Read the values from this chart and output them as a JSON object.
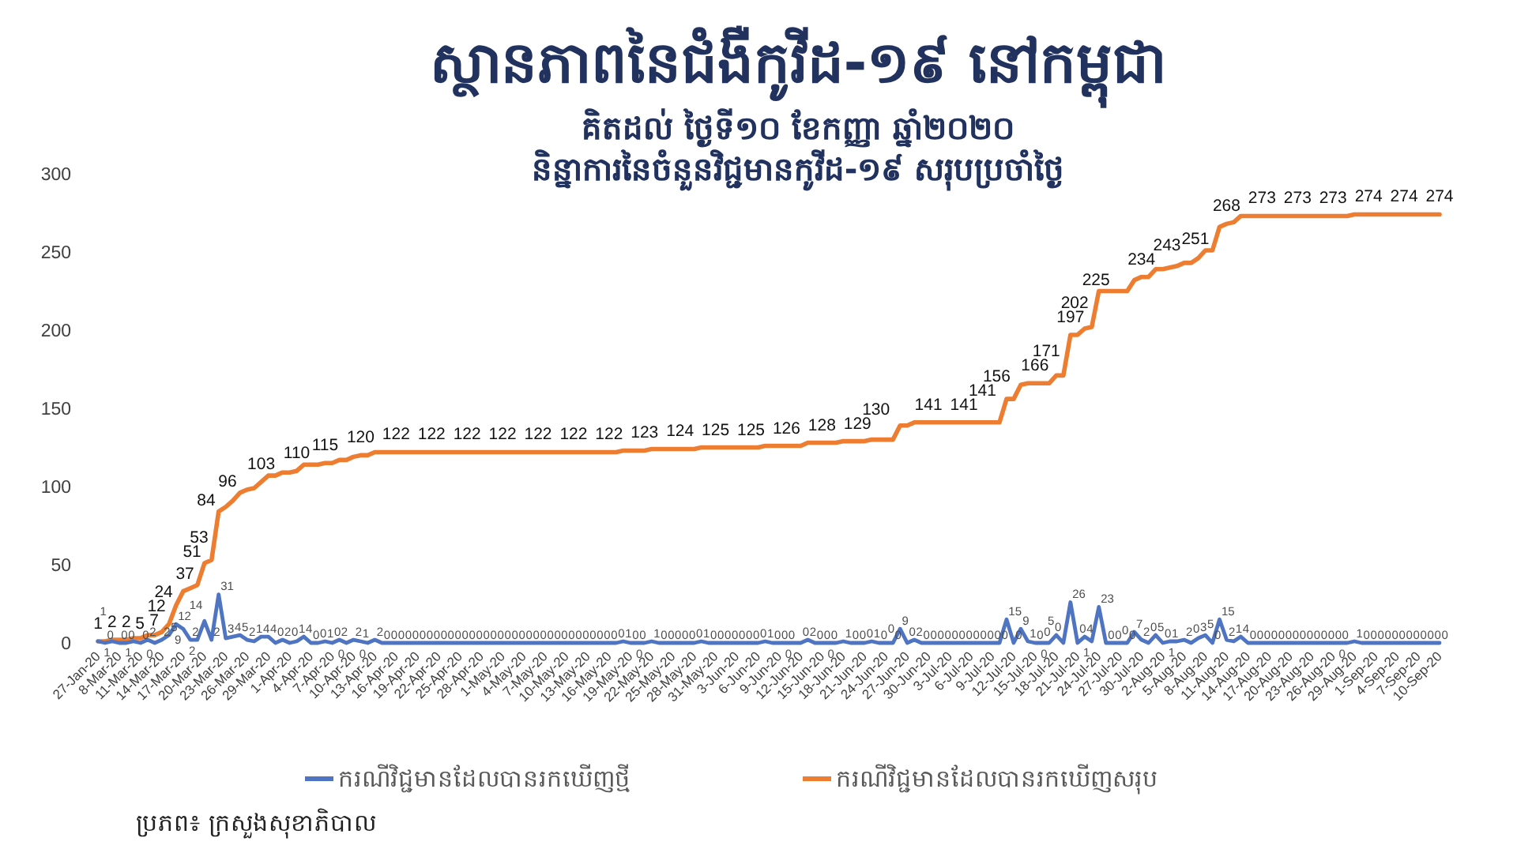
{
  "chart_data": {
    "type": "line",
    "title": "ស្ថានភាពនៃជំងឺកូវីដ-១៩ នៅកម្ពុជា",
    "subtitle": "គិតដល់ ថ្ងៃទី១០ ខែកញ្ញា ឆ្នាំ២០២០\nនិន្នាការនៃចំនួនវិជ្ជមានកូវីដ-១៩ សរុបប្រចាំថ្ងៃ",
    "categories": [
      "27-Jan-20",
      null,
      null,
      "8-Mar-20",
      null,
      null,
      "11-Mar-20",
      null,
      null,
      "14-Mar-20",
      null,
      null,
      "17-Mar-20",
      null,
      null,
      "20-Mar-20",
      null,
      null,
      "23-Mar-20",
      null,
      null,
      "26-Mar-20",
      null,
      null,
      "29-Mar-20",
      null,
      null,
      "1-Apr-20",
      null,
      null,
      "4-Apr-20",
      null,
      null,
      "7-Apr-20",
      null,
      null,
      "10-Apr-20",
      null,
      null,
      "13-Apr-20",
      null,
      null,
      "16-Apr-20",
      null,
      null,
      "19-Apr-20",
      null,
      null,
      "22-Apr-20",
      null,
      null,
      "25-Apr-20",
      null,
      null,
      "28-Apr-20",
      null,
      null,
      "1-May-20",
      null,
      null,
      "4-May-20",
      null,
      null,
      "7-May-20",
      null,
      null,
      "10-May-20",
      null,
      null,
      "13-May-20",
      null,
      null,
      "16-May-20",
      null,
      null,
      "19-May-20",
      null,
      null,
      "22-May-20",
      null,
      null,
      "25-May-20",
      null,
      null,
      "28-May-20",
      null,
      null,
      "31-May-20",
      null,
      null,
      "3-Jun-20",
      null,
      null,
      "6-Jun-20",
      null,
      null,
      "9-Jun-20",
      null,
      null,
      "12-Jun-20",
      null,
      null,
      "15-Jun-20",
      null,
      null,
      "18-Jun-20",
      null,
      null,
      "21-Jun-20",
      null,
      null,
      "24-Jun-20",
      null,
      null,
      "27-Jun-20",
      null,
      null,
      "30-Jun-20",
      null,
      null,
      "3-Jul-20",
      null,
      null,
      "6-Jul-20",
      null,
      null,
      "9-Jul-20",
      null,
      null,
      "12-Jul-20",
      null,
      null,
      "15-Jul-20",
      null,
      null,
      "18-Jul-20",
      null,
      null,
      "21-Jul-20",
      null,
      null,
      "24-Jul-20",
      null,
      null,
      "27-Jul-20",
      null,
      null,
      "30-Jul-20",
      null,
      null,
      "2-Aug-20",
      null,
      null,
      "5-Aug-20",
      null,
      null,
      "8-Aug-20",
      null,
      null,
      "11-Aug-20",
      null,
      null,
      "14-Aug-20",
      null,
      null,
      "17-Aug-20",
      null,
      null,
      "20-Aug-20",
      null,
      null,
      "23-Aug-20",
      null,
      null,
      "26-Aug-20",
      null,
      null,
      "29-Aug-20",
      null,
      null,
      "1-Sep-20",
      null,
      null,
      "4-Sep-20",
      null,
      null,
      "7-Sep-20",
      null,
      null,
      "10-Sep-20"
    ],
    "series": [
      {
        "name": "ករណីវិជ្ជមានដែលបានរកឃើញថ្មី",
        "color": "#4f75c2",
        "values": [
          1,
          0,
          1,
          0,
          0,
          1,
          0,
          2,
          0,
          2,
          5,
          12,
          9,
          2,
          2,
          14,
          2,
          31,
          3,
          4,
          5,
          2,
          1,
          4,
          4,
          0,
          2,
          0,
          1,
          4,
          0,
          0,
          1,
          0,
          2,
          0,
          2,
          1,
          0,
          2,
          0,
          0,
          0,
          0,
          0,
          0,
          0,
          0,
          0,
          0,
          0,
          0,
          0,
          0,
          0,
          0,
          0,
          0,
          0,
          0,
          0,
          0,
          0,
          0,
          0,
          0,
          0,
          0,
          0,
          0,
          0,
          0,
          0,
          0,
          1,
          0,
          0,
          0,
          1,
          0,
          0,
          0,
          0,
          0,
          0,
          1,
          0,
          0,
          0,
          0,
          0,
          0,
          0,
          0,
          1,
          0,
          0,
          0,
          0,
          0,
          2,
          0,
          0,
          0,
          0,
          1,
          0,
          0,
          0,
          1,
          0,
          0,
          0,
          9,
          0,
          2,
          0,
          0,
          0,
          0,
          0,
          0,
          0,
          0,
          0,
          0,
          0,
          0,
          15,
          0,
          9,
          1,
          0,
          0,
          0,
          5,
          0,
          26,
          0,
          4,
          1,
          23,
          0,
          0,
          0,
          0,
          7,
          2,
          0,
          5,
          0,
          1,
          1,
          2,
          0,
          3,
          5,
          0,
          15,
          2,
          1,
          4,
          0,
          0,
          0,
          0,
          0,
          0,
          0,
          0,
          0,
          0,
          0,
          0,
          0,
          0,
          0,
          1,
          0,
          0,
          0,
          0,
          0,
          0,
          0,
          0,
          0,
          0,
          0,
          0
        ],
        "value_labels": [
          "1",
          "0",
          "1",
          "0",
          "0",
          "1",
          "0",
          "2",
          "0",
          "2",
          "5",
          "12",
          "9",
          "2",
          "2",
          "14",
          "2",
          "31",
          "3",
          "4",
          "5",
          "2",
          "1",
          "4",
          "4",
          "0",
          "2",
          "0",
          "1",
          "4",
          "0",
          "0",
          "1",
          "0",
          "2",
          "0",
          "2",
          "1",
          "0",
          "2",
          "0",
          "0",
          "0",
          "0",
          "0",
          "0",
          "0",
          "0",
          "0",
          "0",
          "0",
          "0",
          "0",
          "0",
          "0",
          "0",
          "0",
          "0",
          "0",
          "0",
          "0",
          "0",
          "0",
          "0",
          "0",
          "0",
          "0",
          "0",
          "0",
          "0",
          "0",
          "0",
          "0",
          "0",
          "1",
          "0",
          "0",
          "0",
          "1",
          "0",
          "0",
          "0",
          "0",
          "0",
          "0",
          "1",
          "0",
          "0",
          "0",
          "0",
          "0",
          "0",
          "0",
          "0",
          "1",
          "0",
          "0",
          "0",
          "0",
          "0",
          "2",
          "0",
          "0",
          "0",
          "0",
          "1",
          "0",
          "0",
          "0",
          "1",
          "0",
          "0",
          "0",
          "9",
          "0",
          "2",
          "0",
          "0",
          "0",
          "0",
          "0",
          "0",
          "0",
          "0",
          "0",
          "0",
          "0",
          "0",
          "15",
          "0",
          "9",
          "1",
          "0",
          "0",
          "0",
          "5",
          "0",
          "26",
          "0",
          "4",
          "1",
          "23",
          "0",
          "0",
          "0",
          "0",
          "7",
          "2",
          "0",
          "5",
          "0",
          "1",
          "1",
          "2",
          "0",
          "3",
          "5",
          "0",
          "15",
          "2",
          "1",
          "4",
          "0",
          "0",
          "0",
          "0",
          "0",
          "0",
          "0",
          "0",
          "0",
          "0",
          "0",
          "0",
          "0",
          "0",
          "0",
          "1",
          "0",
          "0",
          "0",
          "0",
          "0",
          "0",
          "0",
          "0",
          "0",
          "0",
          "0",
          "0"
        ]
      },
      {
        "name": "ករណីវិជ្ជមានដែលបានរកឃើញសរុប",
        "color": "#ed7d31",
        "values": [
          1,
          1,
          2,
          2,
          2,
          3,
          3,
          5,
          5,
          7,
          12,
          24,
          33,
          35,
          37,
          51,
          53,
          84,
          87,
          91,
          96,
          98,
          99,
          103,
          107,
          107,
          109,
          109,
          110,
          114,
          114,
          114,
          115,
          115,
          117,
          117,
          119,
          120,
          120,
          122,
          122,
          122,
          122,
          122,
          122,
          122,
          122,
          122,
          122,
          122,
          122,
          122,
          122,
          122,
          122,
          122,
          122,
          122,
          122,
          122,
          122,
          122,
          122,
          122,
          122,
          122,
          122,
          122,
          122,
          122,
          122,
          122,
          122,
          122,
          123,
          123,
          123,
          123,
          124,
          124,
          124,
          124,
          124,
          124,
          124,
          125,
          125,
          125,
          125,
          125,
          125,
          125,
          125,
          125,
          126,
          126,
          126,
          126,
          126,
          126,
          128,
          128,
          128,
          128,
          128,
          129,
          129,
          129,
          129,
          130,
          130,
          130,
          130,
          139,
          139,
          141,
          141,
          141,
          141,
          141,
          141,
          141,
          141,
          141,
          141,
          141,
          141,
          141,
          156,
          156,
          165,
          166,
          166,
          166,
          166,
          171,
          171,
          197,
          197,
          201,
          202,
          225,
          225,
          225,
          225,
          225,
          232,
          234,
          234,
          239,
          239,
          240,
          241,
          243,
          243,
          246,
          251,
          251,
          266,
          268,
          269,
          273,
          273,
          273,
          273,
          273,
          273,
          273,
          273,
          273,
          273,
          273,
          273,
          273,
          273,
          273,
          273,
          274,
          274,
          274,
          274,
          274,
          274,
          274,
          274,
          274,
          274,
          274,
          274,
          274
        ],
        "value_labels": [
          "1",
          null,
          "2",
          null,
          "2",
          null,
          null,
          "5",
          null,
          "7",
          "12",
          "24",
          null,
          null,
          "37",
          "51",
          "53",
          "84",
          null,
          null,
          "96",
          null,
          null,
          "103",
          null,
          null,
          null,
          null,
          "110",
          null,
          null,
          null,
          "115",
          null,
          null,
          null,
          null,
          "120",
          null,
          null,
          null,
          null,
          "122",
          null,
          null,
          null,
          null,
          "122",
          null,
          null,
          null,
          null,
          "122",
          null,
          null,
          null,
          null,
          "122",
          null,
          null,
          null,
          null,
          "122",
          null,
          null,
          null,
          null,
          "122",
          null,
          null,
          null,
          null,
          "122",
          null,
          null,
          null,
          null,
          "123",
          null,
          null,
          null,
          null,
          "124",
          null,
          null,
          null,
          null,
          "125",
          null,
          null,
          null,
          null,
          "125",
          null,
          null,
          null,
          null,
          "126",
          null,
          null,
          null,
          null,
          "128",
          null,
          null,
          null,
          null,
          "129",
          null,
          null,
          null,
          null,
          "130",
          null,
          null,
          null,
          null,
          "141",
          null,
          null,
          null,
          null,
          "141",
          null,
          null,
          null,
          null,
          "141",
          null,
          "156",
          null,
          null,
          "166",
          null,
          null,
          null,
          "171",
          "197",
          null,
          null,
          "202",
          null,
          null,
          "225",
          null,
          null,
          null,
          "234",
          null,
          null,
          null,
          null,
          null,
          "243",
          null,
          null,
          null,
          "251",
          null,
          "268",
          null,
          null,
          null,
          null,
          "273",
          null,
          null,
          null,
          null,
          "273",
          null,
          null,
          null,
          null,
          "273",
          null,
          null,
          null,
          null,
          "274",
          null,
          null,
          null,
          null,
          "274",
          null,
          null,
          null,
          null,
          "274"
        ]
      }
    ],
    "ylim": [
      0,
      300
    ],
    "yticks": [
      0,
      50,
      100,
      150,
      200,
      250,
      300
    ],
    "legend": "bottom",
    "annotations": [
      "ប្រភព៖ ក្រសួងសុខាភិបាល"
    ]
  }
}
